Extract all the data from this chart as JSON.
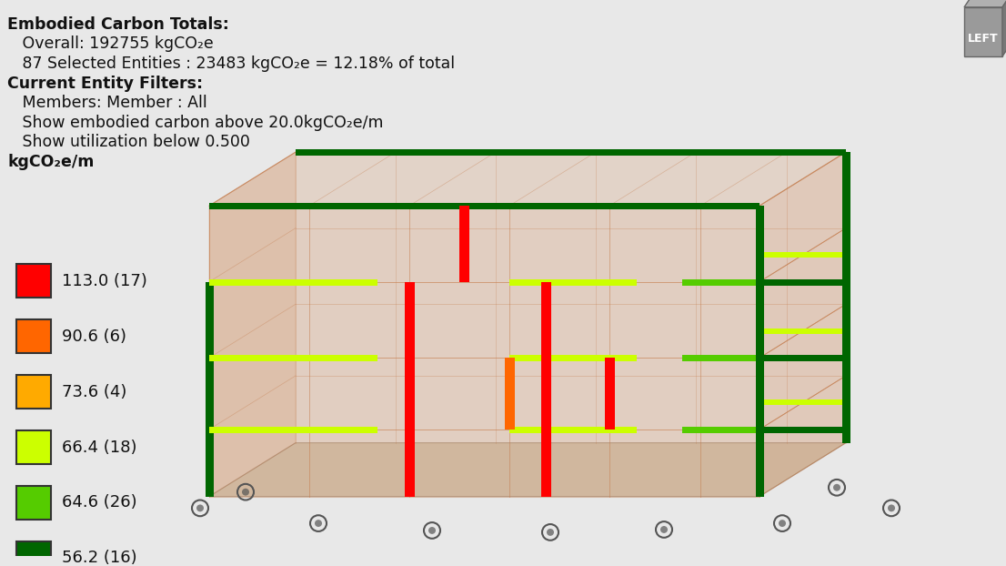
{
  "bg_color": "#e8e8e8",
  "title_lines": [
    "Embodied Carbon Totals:",
    "   Overall: 192755 kgCO₂e",
    "   87 Selected Entities : 23483 kgCO₂e = 12.18% of total",
    "Current Entity Filters:",
    "   Members: Member : All",
    "   Show embodied carbon above 20.0kgCO₂e/m",
    "   Show utilization below 0.500",
    "kgCO₂e/m"
  ],
  "legend_items": [
    {
      "color": "#ff0000",
      "label": "113.0 (17)"
    },
    {
      "color": "#ff6600",
      "label": "90.6 (6)"
    },
    {
      "color": "#ffaa00",
      "label": "73.6 (4)"
    },
    {
      "color": "#ccff00",
      "label": "66.4 (18)"
    },
    {
      "color": "#55cc00",
      "label": "64.6 (26)"
    },
    {
      "color": "#006600",
      "label": "56.2 (16)"
    }
  ],
  "text_color": "#111111",
  "font_size_main": 12.5,
  "font_size_legend": 13,
  "cube_color": "#888888",
  "cube_text": "LEFT",
  "building_face_color": "#d4956a",
  "building_face_alpha": 0.35,
  "building_edge_color": "#c47a4a",
  "floor_color": "#c8a882",
  "floor_alpha": 0.3
}
